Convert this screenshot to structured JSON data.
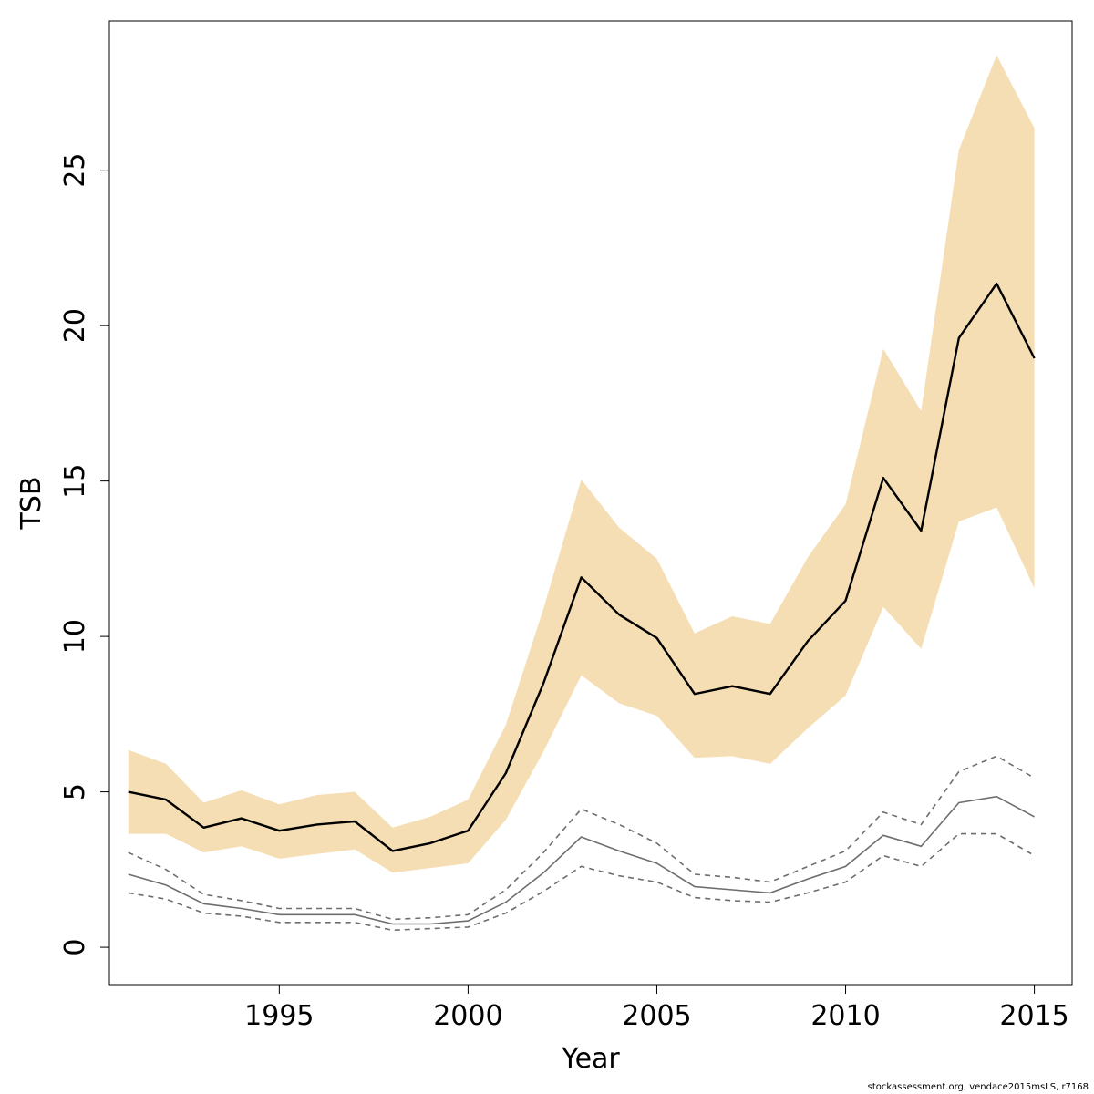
{
  "chart_data": {
    "type": "line",
    "title": "",
    "xlabel": "Year",
    "ylabel": "TSB",
    "xlim": [
      1990.5,
      2016
    ],
    "ylim": [
      -1.2,
      29.8
    ],
    "xticks": [
      1995,
      2000,
      2005,
      2010,
      2015
    ],
    "yticks": [
      0,
      5,
      10,
      15,
      20,
      25
    ],
    "grid": false,
    "legend": "none",
    "x": [
      1991,
      1992,
      1993,
      1994,
      1995,
      1996,
      1997,
      1998,
      1999,
      2000,
      2001,
      2002,
      2003,
      2004,
      2005,
      2006,
      2007,
      2008,
      2009,
      2010,
      2011,
      2012,
      2013,
      2014,
      2015
    ],
    "series": [
      {
        "role": "estimate",
        "color": "#000000",
        "style": "solid",
        "values": [
          5.0,
          4.75,
          3.85,
          4.15,
          3.75,
          3.95,
          4.05,
          3.1,
          3.35,
          3.75,
          5.6,
          8.5,
          11.9,
          10.7,
          9.95,
          8.15,
          8.4,
          8.15,
          9.85,
          11.15,
          15.1,
          13.4,
          19.6,
          21.35,
          18.95
        ]
      },
      {
        "role": "confidence-band",
        "color": "#f5deb3",
        "lower": [
          3.65,
          3.65,
          3.05,
          3.25,
          2.85,
          3.0,
          3.15,
          2.4,
          2.55,
          2.7,
          4.1,
          6.3,
          8.75,
          7.85,
          7.45,
          6.1,
          6.15,
          5.9,
          7.05,
          8.1,
          10.95,
          9.6,
          13.7,
          14.15,
          11.55
        ],
        "upper": [
          6.35,
          5.9,
          4.65,
          5.05,
          4.6,
          4.9,
          5.0,
          3.85,
          4.2,
          4.75,
          7.15,
          10.9,
          15.05,
          13.5,
          12.5,
          10.1,
          10.65,
          10.4,
          12.55,
          14.25,
          19.25,
          17.25,
          25.65,
          28.7,
          26.35
        ]
      },
      {
        "role": "secondary-estimate",
        "color": "#6e6e6e",
        "style": "solid",
        "values": [
          2.35,
          2.0,
          1.4,
          1.25,
          1.05,
          1.05,
          1.05,
          0.75,
          0.75,
          0.85,
          1.45,
          2.4,
          3.55,
          3.1,
          2.7,
          1.95,
          1.85,
          1.75,
          2.2,
          2.6,
          3.6,
          3.25,
          4.65,
          4.85,
          4.2
        ]
      },
      {
        "role": "secondary-upper",
        "color": "#6e6e6e",
        "style": "dashed",
        "values": [
          3.05,
          2.5,
          1.7,
          1.5,
          1.25,
          1.25,
          1.25,
          0.9,
          0.95,
          1.05,
          1.85,
          3.05,
          4.45,
          3.95,
          3.35,
          2.35,
          2.25,
          2.1,
          2.6,
          3.1,
          4.35,
          3.95,
          5.65,
          6.15,
          5.45
        ]
      },
      {
        "role": "secondary-lower",
        "color": "#6e6e6e",
        "style": "dashed",
        "values": [
          1.75,
          1.55,
          1.1,
          1.0,
          0.8,
          0.8,
          0.8,
          0.55,
          0.6,
          0.65,
          1.1,
          1.8,
          2.6,
          2.3,
          2.1,
          1.6,
          1.5,
          1.45,
          1.75,
          2.1,
          2.95,
          2.6,
          3.65,
          3.65,
          2.95
        ]
      }
    ]
  },
  "footer": "stockassessment.org, vendace2015msLS, r7168"
}
